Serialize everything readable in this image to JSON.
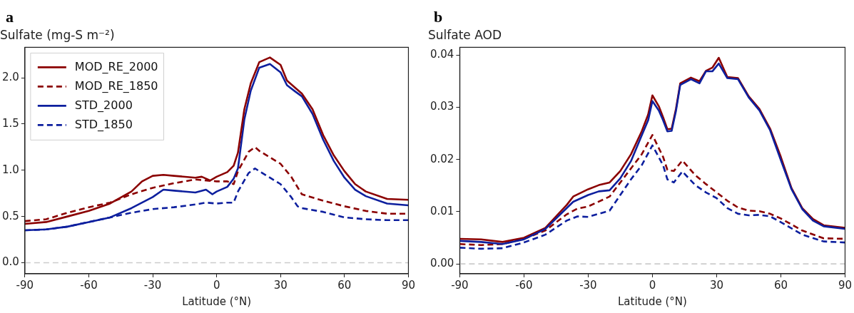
{
  "chart_data": [
    {
      "type": "line",
      "annotations": [
        "a"
      ],
      "title": "Sulfate (mg-S m⁻²)",
      "xlabel": "Latitude (°N)",
      "xlim": [
        -90,
        90
      ],
      "xticks": [
        -90,
        -60,
        -30,
        0,
        30,
        60,
        90
      ],
      "ylim": [
        -0.12,
        2.33
      ],
      "yticks": [
        {
          "value": 0,
          "label": "0.0"
        },
        0.5,
        {
          "value": 1,
          "label": "1.0"
        },
        1.5,
        {
          "value": 2,
          "label": "2.0"
        }
      ],
      "legend": "top left",
      "ref_lines": [
        {
          "axis": "y",
          "value": 0,
          "label": null,
          "color": "#cccccc",
          "line_style": "dashed"
        }
      ],
      "series": [
        {
          "name": "MOD_RE_2000",
          "color": "#8b0000",
          "line_style": "solid",
          "x": [
            -90,
            -80,
            -70,
            -60,
            -50,
            -40,
            -35,
            -30,
            -25,
            -20,
            -10,
            -7,
            -3,
            0,
            5,
            8,
            10,
            13,
            16,
            20,
            25,
            30,
            33,
            37,
            40,
            45,
            50,
            55,
            60,
            65,
            70,
            80,
            90
          ],
          "values": [
            0.42,
            0.44,
            0.5,
            0.56,
            0.64,
            0.77,
            0.88,
            0.94,
            0.95,
            0.94,
            0.92,
            0.93,
            0.89,
            0.93,
            0.98,
            1.05,
            1.19,
            1.66,
            1.94,
            2.17,
            2.22,
            2.14,
            1.97,
            1.89,
            1.83,
            1.66,
            1.38,
            1.16,
            0.99,
            0.85,
            0.77,
            0.69,
            0.68
          ]
        },
        {
          "name": "MOD_RE_1850",
          "color": "#8b0000",
          "line_style": "dashed",
          "x": [
            -90,
            -80,
            -70,
            -60,
            -50,
            -40,
            -30,
            -20,
            -10,
            0,
            5,
            8,
            10,
            15,
            18,
            20,
            30,
            35,
            40,
            50,
            60,
            70,
            80,
            90
          ],
          "values": [
            0.45,
            0.47,
            0.54,
            0.6,
            0.65,
            0.74,
            0.81,
            0.86,
            0.9,
            0.88,
            0.88,
            0.85,
            0.99,
            1.2,
            1.25,
            1.21,
            1.07,
            0.93,
            0.74,
            0.67,
            0.61,
            0.56,
            0.53,
            0.53
          ]
        },
        {
          "name": "STD_2000",
          "color": "#0d1f9e",
          "line_style": "solid",
          "x": [
            -90,
            -80,
            -70,
            -60,
            -50,
            -40,
            -30,
            -25,
            -20,
            -10,
            -5,
            -2,
            0,
            5,
            8,
            10,
            13,
            16,
            20,
            25,
            30,
            33,
            37,
            40,
            45,
            50,
            55,
            60,
            65,
            70,
            80,
            90
          ],
          "values": [
            0.35,
            0.36,
            0.39,
            0.44,
            0.49,
            0.59,
            0.71,
            0.79,
            0.78,
            0.76,
            0.79,
            0.74,
            0.77,
            0.82,
            0.91,
            1.02,
            1.55,
            1.86,
            2.11,
            2.15,
            2.06,
            1.92,
            1.85,
            1.8,
            1.61,
            1.33,
            1.1,
            0.92,
            0.79,
            0.72,
            0.64,
            0.62
          ]
        },
        {
          "name": "STD_1850",
          "color": "#0d1f9e",
          "line_style": "dashed",
          "x": [
            -90,
            -80,
            -70,
            -60,
            -50,
            -40,
            -30,
            -20,
            -10,
            -5,
            0,
            5,
            8,
            10,
            15,
            18,
            20,
            30,
            35,
            38,
            40,
            50,
            60,
            70,
            80,
            90
          ],
          "values": [
            0.35,
            0.36,
            0.39,
            0.44,
            0.49,
            0.54,
            0.58,
            0.6,
            0.63,
            0.65,
            0.64,
            0.65,
            0.65,
            0.77,
            0.97,
            1.02,
            0.99,
            0.85,
            0.71,
            0.61,
            0.59,
            0.55,
            0.49,
            0.47,
            0.46,
            0.46
          ]
        }
      ]
    },
    {
      "type": "line",
      "annotations": [
        "b"
      ],
      "title": "Sulfate AOD",
      "xlabel": "Latitude (°N)",
      "xlim": [
        -90,
        90
      ],
      "xticks": [
        -90,
        -60,
        -30,
        0,
        30,
        60,
        90
      ],
      "ylim": [
        -0.0019,
        0.0415
      ],
      "yticks": [
        {
          "value": 0,
          "label": "0.00"
        },
        {
          "value": 0.01,
          "label": "0.01"
        },
        {
          "value": 0.02,
          "label": "0.02"
        },
        {
          "value": 0.03,
          "label": "0.03"
        },
        {
          "value": 0.04,
          "label": "0.04"
        }
      ],
      "ref_lines": [
        {
          "axis": "y",
          "value": 0,
          "label": null,
          "color": "#cccccc",
          "line_style": "dashed"
        }
      ],
      "series": [
        {
          "color": "#0d1f9e",
          "line_style": "solid",
          "x": [
            -90,
            -80,
            -70,
            -60,
            -50,
            -40,
            -37,
            -30,
            -25,
            -20,
            -15,
            -10,
            -5,
            -2,
            0,
            3,
            5,
            7,
            9,
            11,
            13,
            18,
            22,
            25,
            28,
            31,
            35,
            40,
            45,
            50,
            55,
            60,
            65,
            70,
            75,
            80,
            90
          ],
          "values": [
            0.0044,
            0.0042,
            0.0038,
            0.0047,
            0.0067,
            0.0107,
            0.0119,
            0.0132,
            0.0139,
            0.0141,
            0.0164,
            0.0197,
            0.0246,
            0.0275,
            0.0312,
            0.0294,
            0.0275,
            0.0254,
            0.0255,
            0.0293,
            0.0343,
            0.0354,
            0.0346,
            0.0369,
            0.0369,
            0.0384,
            0.0356,
            0.0354,
            0.0319,
            0.0294,
            0.0256,
            0.0199,
            0.0143,
            0.0105,
            0.0083,
            0.0072,
            0.0067
          ]
        },
        {
          "color": "#8b0000",
          "line_style": "solid",
          "x": [
            -90,
            -80,
            -70,
            -60,
            -50,
            -40,
            -37,
            -30,
            -25,
            -20,
            -15,
            -10,
            -5,
            -2,
            0,
            3,
            5,
            7,
            9,
            11,
            13,
            18,
            22,
            25,
            28,
            31,
            35,
            40,
            45,
            50,
            55,
            60,
            65,
            70,
            75,
            80,
            90
          ],
          "values": [
            0.0048,
            0.0047,
            0.0042,
            0.005,
            0.0069,
            0.0113,
            0.0129,
            0.0143,
            0.0151,
            0.0156,
            0.0178,
            0.021,
            0.0254,
            0.0286,
            0.0323,
            0.0302,
            0.0281,
            0.0258,
            0.0259,
            0.0297,
            0.0346,
            0.0357,
            0.035,
            0.037,
            0.0376,
            0.0395,
            0.0358,
            0.0356,
            0.0321,
            0.0297,
            0.0259,
            0.0205,
            0.0145,
            0.0107,
            0.0086,
            0.0074,
            0.0069
          ]
        },
        {
          "color": "#8b0000",
          "line_style": "dashed",
          "x": [
            -90,
            -80,
            -70,
            -60,
            -50,
            -40,
            -35,
            -30,
            -20,
            -10,
            -5,
            0,
            5,
            7,
            10,
            14,
            20,
            25,
            30,
            35,
            40,
            45,
            50,
            55,
            60,
            70,
            80,
            90
          ],
          "values": [
            0.0038,
            0.0036,
            0.0038,
            0.0048,
            0.0064,
            0.0095,
            0.0106,
            0.011,
            0.0129,
            0.0183,
            0.021,
            0.0247,
            0.0205,
            0.018,
            0.0178,
            0.0198,
            0.017,
            0.0153,
            0.0137,
            0.0121,
            0.0108,
            0.0102,
            0.0101,
            0.0096,
            0.0087,
            0.0064,
            0.0049,
            0.0048
          ]
        },
        {
          "color": "#0d1f9e",
          "line_style": "dashed",
          "x": [
            -90,
            -80,
            -70,
            -60,
            -50,
            -40,
            -35,
            -30,
            -20,
            -10,
            -5,
            0,
            5,
            7,
            10,
            14,
            20,
            25,
            30,
            35,
            40,
            45,
            50,
            55,
            60,
            70,
            80,
            90
          ],
          "values": [
            0.0031,
            0.0029,
            0.003,
            0.0041,
            0.0056,
            0.0083,
            0.0091,
            0.009,
            0.0102,
            0.0162,
            0.0189,
            0.0227,
            0.0189,
            0.0162,
            0.0156,
            0.0177,
            0.0151,
            0.0137,
            0.0126,
            0.0107,
            0.0096,
            0.0093,
            0.0094,
            0.0091,
            0.008,
            0.0056,
            0.0043,
            0.0041
          ]
        }
      ]
    }
  ]
}
